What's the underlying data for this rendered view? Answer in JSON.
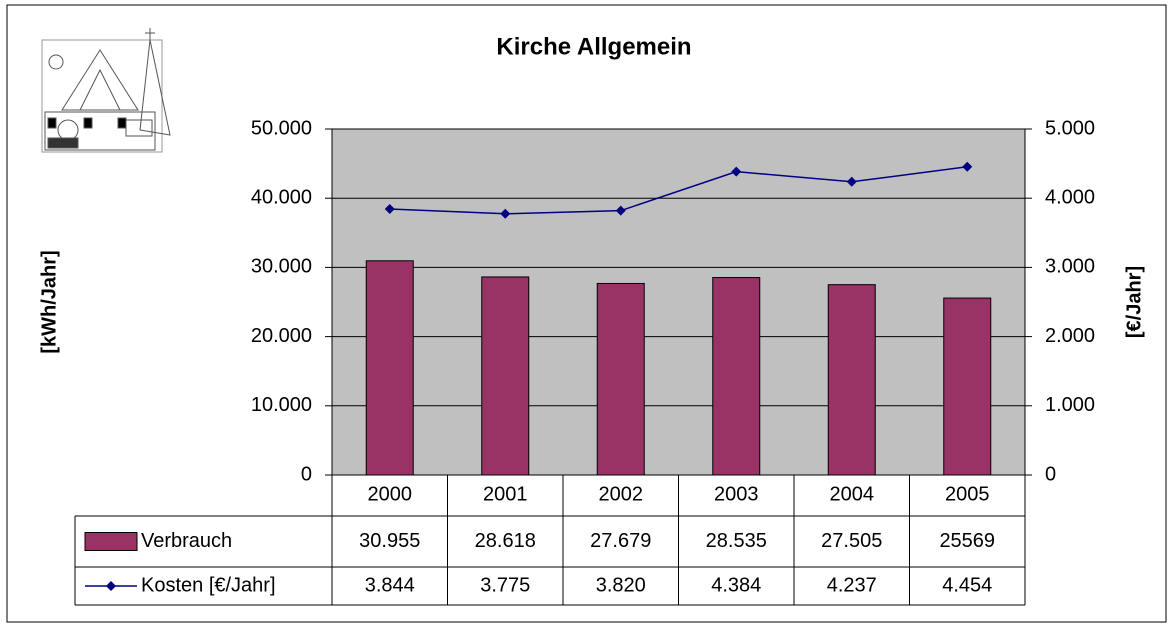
{
  "chart_data": {
    "type": "bar",
    "title": "Kirche Allgemein",
    "y_label": "[kWh/Jahr]",
    "y2_label": "[€/Jahr]",
    "categories": [
      "2000",
      "2001",
      "2002",
      "2003",
      "2004",
      "2005"
    ],
    "series": [
      {
        "name": "Verbrauch",
        "type": "bar",
        "color": "#993366",
        "values": [
          30955,
          28618,
          27679,
          28535,
          27505,
          25569
        ],
        "value_labels": [
          "30.955",
          "28.618",
          "27.679",
          "28.535",
          "27.505",
          "25569"
        ]
      },
      {
        "name": "Kosten [€/Jahr]",
        "type": "line",
        "axis": "y2",
        "color": "#000080",
        "values": [
          3844,
          3775,
          3820,
          4384,
          4237,
          4454
        ],
        "value_labels": [
          "3.844",
          "3.775",
          "3.820",
          "4.384",
          "4.237",
          "4.454"
        ]
      }
    ],
    "ylim": [
      0,
      50000
    ],
    "yticks": [
      0,
      {
        "value": 10000,
        "label": "10.000"
      },
      {
        "value": 20000,
        "label": "20.000"
      },
      {
        "value": 30000,
        "label": "30.000"
      },
      {
        "value": 40000,
        "label": "40.000"
      },
      {
        "value": 50000,
        "label": "50.000"
      }
    ],
    "y2lim": [
      0,
      5000
    ],
    "y2ticks": [
      0,
      {
        "value": 1000,
        "label": "1.000"
      },
      {
        "value": 2000,
        "label": "2.000"
      },
      {
        "value": 3000,
        "label": "3.000"
      },
      {
        "value": 4000,
        "label": "4.000"
      },
      {
        "value": 5000,
        "label": "5.000"
      }
    ],
    "grid": true,
    "plot_background": "#c0c0c0"
  }
}
